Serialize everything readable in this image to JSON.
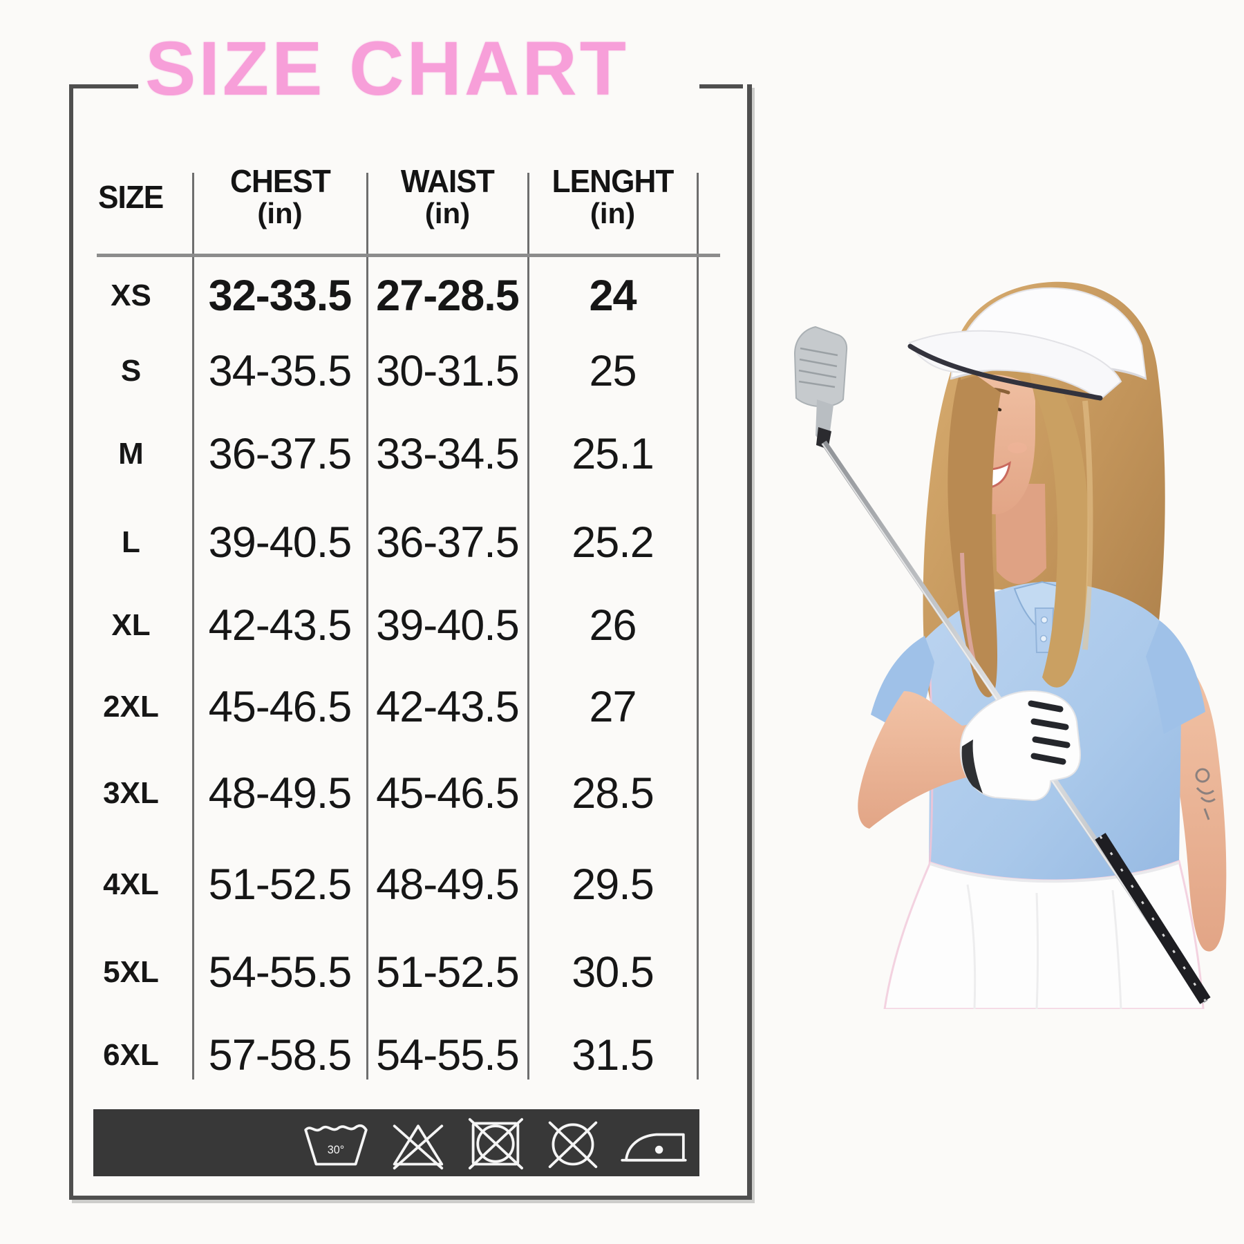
{
  "title": {
    "text": "SIZE CHART",
    "color": "#f79fd9"
  },
  "chart_data": {
    "type": "table",
    "title": "SIZE CHART",
    "columns": [
      {
        "key": "size",
        "label": "SIZE",
        "sub": ""
      },
      {
        "key": "chest",
        "label": "CHEST",
        "sub": "(in)"
      },
      {
        "key": "waist",
        "label": "WAIST",
        "sub": "(in)"
      },
      {
        "key": "length",
        "label": "LENGHT",
        "sub": "(in)"
      }
    ],
    "rows": [
      {
        "size": "XS",
        "chest": "32-33.5",
        "waist": "27-28.5",
        "length": "24",
        "bold": true
      },
      {
        "size": "S",
        "chest": "34-35.5",
        "waist": "30-31.5",
        "length": "25",
        "bold": false
      },
      {
        "size": "M",
        "chest": "36-37.5",
        "waist": "33-34.5",
        "length": "25.1",
        "bold": false
      },
      {
        "size": "L",
        "chest": "39-40.5",
        "waist": "36-37.5",
        "length": "25.2",
        "bold": false
      },
      {
        "size": "XL",
        "chest": "42-43.5",
        "waist": "39-40.5",
        "length": "26",
        "bold": false
      },
      {
        "size": "2XL",
        "chest": "45-46.5",
        "waist": "42-43.5",
        "length": "27",
        "bold": false
      },
      {
        "size": "3XL",
        "chest": "48-49.5",
        "waist": "45-46.5",
        "length": "28.5",
        "bold": false
      },
      {
        "size": "4XL",
        "chest": "51-52.5",
        "waist": "48-49.5",
        "length": "29.5",
        "bold": false
      },
      {
        "size": "5XL",
        "chest": "54-55.5",
        "waist": "51-52.5",
        "length": "30.5",
        "bold": false
      },
      {
        "size": "6XL",
        "chest": "57-58.5",
        "waist": "54-55.5",
        "length": "31.5",
        "bold": false
      }
    ]
  },
  "care": {
    "bar_color": "#383838",
    "icons": [
      {
        "name": "machine-wash-30-icon",
        "label": "30°"
      },
      {
        "name": "do-not-bleach-icon"
      },
      {
        "name": "do-not-tumble-dry-icon"
      },
      {
        "name": "do-not-dry-clean-icon"
      },
      {
        "name": "iron-low-icon"
      }
    ]
  },
  "photo": {
    "alt": "Smiling woman golfer in white sun visor and light blue polo shirt holding a golf iron with a white glove",
    "colors": {
      "polo_blue": "#a9c8ea",
      "visor_white": "#fafafa",
      "skin": "#eab79c",
      "hair": "#c9995f",
      "grip_black": "#1e1e22"
    }
  }
}
